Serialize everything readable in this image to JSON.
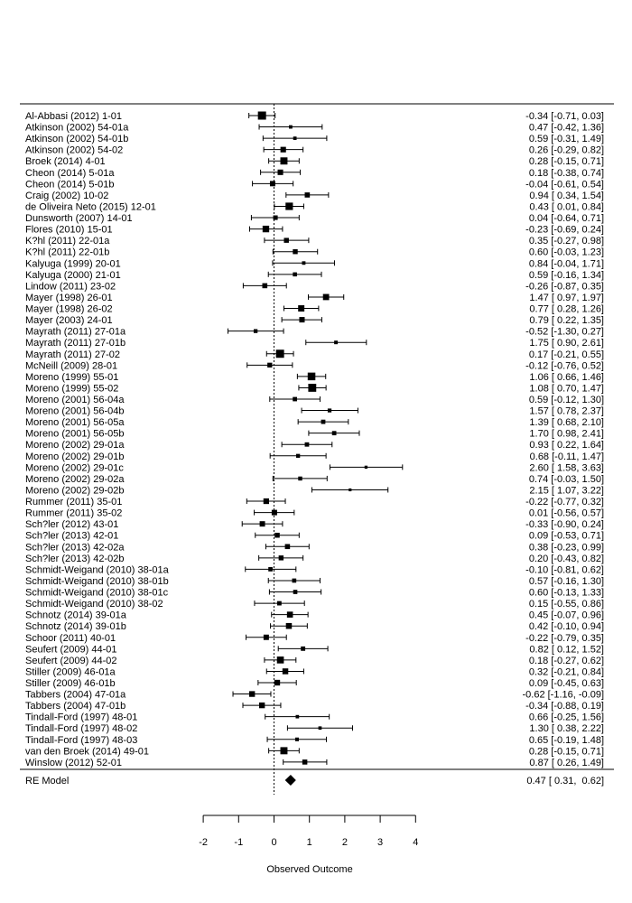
{
  "chart_data": {
    "type": "forest",
    "xlabel": "Observed Outcome",
    "xlim": [
      -2,
      4
    ],
    "ticks": [
      -2,
      -1,
      0,
      1,
      2,
      3,
      4
    ],
    "tick_labels": [
      "-2",
      "-1",
      "0",
      "1",
      "2",
      "3",
      "4"
    ],
    "reference_line": 0,
    "studies": [
      {
        "label": "Al-Abbasi (2012) 1-01",
        "est": -0.34,
        "lo": -0.71,
        "hi": 0.03,
        "text": "-0.34 [-0.71,  0.03]"
      },
      {
        "label": "Atkinson (2002) 54-01a",
        "est": 0.47,
        "lo": -0.42,
        "hi": 1.36,
        "text": "0.47 [-0.42,  1.36]"
      },
      {
        "label": "Atkinson (2002) 54-01b",
        "est": 0.59,
        "lo": -0.31,
        "hi": 1.49,
        "text": "0.59 [-0.31,  1.49]"
      },
      {
        "label": "Atkinson (2002) 54-02",
        "est": 0.26,
        "lo": -0.29,
        "hi": 0.82,
        "text": "0.26 [-0.29,  0.82]"
      },
      {
        "label": "Broek (2014) 4-01",
        "est": 0.28,
        "lo": -0.15,
        "hi": 0.71,
        "text": "0.28 [-0.15,  0.71]"
      },
      {
        "label": "Cheon (2014) 5-01a",
        "est": 0.18,
        "lo": -0.38,
        "hi": 0.74,
        "text": "0.18 [-0.38,  0.74]"
      },
      {
        "label": "Cheon (2014) 5-01b",
        "est": -0.04,
        "lo": -0.61,
        "hi": 0.54,
        "text": "-0.04 [-0.61,  0.54]"
      },
      {
        "label": "Craig (2002) 10-02",
        "est": 0.94,
        "lo": 0.34,
        "hi": 1.54,
        "text": "0.94 [ 0.34,  1.54]"
      },
      {
        "label": "de Oliveira Neto (2015) 12-01",
        "est": 0.43,
        "lo": 0.01,
        "hi": 0.84,
        "text": "0.43 [ 0.01,  0.84]"
      },
      {
        "label": "Dunsworth (2007) 14-01",
        "est": 0.04,
        "lo": -0.64,
        "hi": 0.71,
        "text": "0.04 [-0.64,  0.71]"
      },
      {
        "label": "Flores (2010) 15-01",
        "est": -0.23,
        "lo": -0.69,
        "hi": 0.24,
        "text": "-0.23 [-0.69,  0.24]"
      },
      {
        "label": "K?hl (2011) 22-01a",
        "est": 0.35,
        "lo": -0.27,
        "hi": 0.98,
        "text": "0.35 [-0.27,  0.98]"
      },
      {
        "label": "K?hl (2011) 22-01b",
        "est": 0.6,
        "lo": -0.03,
        "hi": 1.23,
        "text": "0.60 [-0.03,  1.23]"
      },
      {
        "label": "Kalyuga (1999) 20-01",
        "est": 0.84,
        "lo": -0.04,
        "hi": 1.71,
        "text": "0.84 [-0.04,  1.71]"
      },
      {
        "label": "Kalyuga (2000) 21-01",
        "est": 0.59,
        "lo": -0.16,
        "hi": 1.34,
        "text": "0.59 [-0.16,  1.34]"
      },
      {
        "label": "Lindow (2011) 23-02",
        "est": -0.26,
        "lo": -0.87,
        "hi": 0.35,
        "text": "-0.26 [-0.87,  0.35]"
      },
      {
        "label": "Mayer (1998) 26-01",
        "est": 1.47,
        "lo": 0.97,
        "hi": 1.97,
        "text": "1.47 [ 0.97,  1.97]"
      },
      {
        "label": "Mayer (1998) 26-02",
        "est": 0.77,
        "lo": 0.28,
        "hi": 1.26,
        "text": "0.77 [ 0.28,  1.26]"
      },
      {
        "label": "Mayer (2003) 24-01",
        "est": 0.79,
        "lo": 0.22,
        "hi": 1.35,
        "text": "0.79 [ 0.22,  1.35]"
      },
      {
        "label": "Mayrath (2011) 27-01a",
        "est": -0.52,
        "lo": -1.3,
        "hi": 0.27,
        "text": "-0.52 [-1.30,  0.27]"
      },
      {
        "label": "Mayrath (2011) 27-01b",
        "est": 1.75,
        "lo": 0.9,
        "hi": 2.61,
        "text": "1.75 [ 0.90,  2.61]"
      },
      {
        "label": "Mayrath (2011) 27-02",
        "est": 0.17,
        "lo": -0.21,
        "hi": 0.55,
        "text": "0.17 [-0.21,  0.55]"
      },
      {
        "label": "McNeill (2009) 28-01",
        "est": -0.12,
        "lo": -0.76,
        "hi": 0.52,
        "text": "-0.12 [-0.76,  0.52]"
      },
      {
        "label": "Moreno (1999) 55-01",
        "est": 1.06,
        "lo": 0.66,
        "hi": 1.46,
        "text": "1.06 [ 0.66,  1.46]"
      },
      {
        "label": "Moreno (1999) 55-02",
        "est": 1.08,
        "lo": 0.7,
        "hi": 1.47,
        "text": "1.08 [ 0.70,  1.47]"
      },
      {
        "label": "Moreno (2001) 56-04a",
        "est": 0.59,
        "lo": -0.12,
        "hi": 1.3,
        "text": "0.59 [-0.12,  1.30]"
      },
      {
        "label": "Moreno (2001) 56-04b",
        "est": 1.57,
        "lo": 0.78,
        "hi": 2.37,
        "text": "1.57 [ 0.78,  2.37]"
      },
      {
        "label": "Moreno (2001) 56-05a",
        "est": 1.39,
        "lo": 0.68,
        "hi": 2.1,
        "text": "1.39 [ 0.68,  2.10]"
      },
      {
        "label": "Moreno (2001) 56-05b",
        "est": 1.7,
        "lo": 0.98,
        "hi": 2.41,
        "text": "1.70 [ 0.98,  2.41]"
      },
      {
        "label": "Moreno (2002) 29-01a",
        "est": 0.93,
        "lo": 0.22,
        "hi": 1.64,
        "text": "0.93 [ 0.22,  1.64]"
      },
      {
        "label": "Moreno (2002) 29-01b",
        "est": 0.68,
        "lo": -0.11,
        "hi": 1.47,
        "text": "0.68 [-0.11,  1.47]"
      },
      {
        "label": "Moreno (2002) 29-01c",
        "est": 2.6,
        "lo": 1.58,
        "hi": 3.63,
        "text": "2.60 [ 1.58,  3.63]"
      },
      {
        "label": "Moreno (2002) 29-02a",
        "est": 0.74,
        "lo": -0.03,
        "hi": 1.5,
        "text": "0.74 [-0.03,  1.50]"
      },
      {
        "label": "Moreno (2002) 29-02b",
        "est": 2.15,
        "lo": 1.07,
        "hi": 3.22,
        "text": "2.15 [ 1.07,  3.22]"
      },
      {
        "label": "Rummer (2011) 35-01",
        "est": -0.22,
        "lo": -0.77,
        "hi": 0.32,
        "text": "-0.22 [-0.77,  0.32]"
      },
      {
        "label": "Rummer (2011) 35-02",
        "est": 0.01,
        "lo": -0.56,
        "hi": 0.57,
        "text": "0.01 [-0.56,  0.57]"
      },
      {
        "label": "Sch?ler (2012) 43-01",
        "est": -0.33,
        "lo": -0.9,
        "hi": 0.24,
        "text": "-0.33 [-0.90,  0.24]"
      },
      {
        "label": "Sch?ler (2013) 42-01",
        "est": 0.09,
        "lo": -0.53,
        "hi": 0.71,
        "text": "0.09 [-0.53,  0.71]"
      },
      {
        "label": "Sch?ler (2013) 42-02a",
        "est": 0.38,
        "lo": -0.23,
        "hi": 0.99,
        "text": "0.38 [-0.23,  0.99]"
      },
      {
        "label": "Sch?ler (2013) 42-02b",
        "est": 0.2,
        "lo": -0.43,
        "hi": 0.82,
        "text": "0.20 [-0.43,  0.82]"
      },
      {
        "label": "Schmidt-Weigand (2010) 38-01a",
        "est": -0.1,
        "lo": -0.81,
        "hi": 0.62,
        "text": "-0.10 [-0.81,  0.62]"
      },
      {
        "label": "Schmidt-Weigand (2010) 38-01b",
        "est": 0.57,
        "lo": -0.16,
        "hi": 1.3,
        "text": "0.57 [-0.16,  1.30]"
      },
      {
        "label": "Schmidt-Weigand (2010) 38-01c",
        "est": 0.6,
        "lo": -0.13,
        "hi": 1.33,
        "text": "0.60 [-0.13,  1.33]"
      },
      {
        "label": "Schmidt-Weigand (2010) 38-02",
        "est": 0.15,
        "lo": -0.55,
        "hi": 0.86,
        "text": "0.15 [-0.55,  0.86]"
      },
      {
        "label": "Schnotz (2014) 39-01a",
        "est": 0.45,
        "lo": -0.07,
        "hi": 0.96,
        "text": "0.45 [-0.07,  0.96]"
      },
      {
        "label": "Schnotz (2014) 39-01b",
        "est": 0.42,
        "lo": -0.1,
        "hi": 0.94,
        "text": "0.42 [-0.10,  0.94]"
      },
      {
        "label": "Schoor (2011) 40-01",
        "est": -0.22,
        "lo": -0.79,
        "hi": 0.35,
        "text": "-0.22 [-0.79,  0.35]"
      },
      {
        "label": "Seufert (2009) 44-01",
        "est": 0.82,
        "lo": 0.12,
        "hi": 1.52,
        "text": "0.82 [ 0.12,  1.52]"
      },
      {
        "label": "Seufert (2009) 44-02",
        "est": 0.18,
        "lo": -0.27,
        "hi": 0.62,
        "text": "0.18 [-0.27,  0.62]"
      },
      {
        "label": "Stiller (2009) 46-01a",
        "est": 0.32,
        "lo": -0.21,
        "hi": 0.84,
        "text": "0.32 [-0.21,  0.84]"
      },
      {
        "label": "Stiller (2009) 46-01b",
        "est": 0.09,
        "lo": -0.45,
        "hi": 0.63,
        "text": "0.09 [-0.45,  0.63]"
      },
      {
        "label": "Tabbers (2004) 47-01a",
        "est": -0.62,
        "lo": -1.16,
        "hi": -0.09,
        "text": "-0.62 [-1.16, -0.09]"
      },
      {
        "label": "Tabbers (2004) 47-01b",
        "est": -0.34,
        "lo": -0.88,
        "hi": 0.19,
        "text": "-0.34 [-0.88,  0.19]"
      },
      {
        "label": "Tindall-Ford (1997) 48-01",
        "est": 0.66,
        "lo": -0.25,
        "hi": 1.56,
        "text": "0.66 [-0.25,  1.56]"
      },
      {
        "label": "Tindall-Ford (1997) 48-02",
        "est": 1.3,
        "lo": 0.38,
        "hi": 2.22,
        "text": "1.30 [ 0.38,  2.22]"
      },
      {
        "label": "Tindall-Ford (1997) 48-03",
        "est": 0.65,
        "lo": -0.19,
        "hi": 1.48,
        "text": "0.65 [-0.19,  1.48]"
      },
      {
        "label": "van den Broek (2014) 49-01",
        "est": 0.28,
        "lo": -0.15,
        "hi": 0.71,
        "text": "0.28 [-0.15,  0.71]"
      },
      {
        "label": "Winslow (2012) 52-01",
        "est": 0.87,
        "lo": 0.26,
        "hi": 1.49,
        "text": "0.87 [ 0.26,  1.49]"
      }
    ],
    "summary": {
      "label": "RE Model",
      "est": 0.47,
      "lo": 0.31,
      "hi": 0.62,
      "text": "0.47 [ 0.31,  0.62]"
    }
  }
}
